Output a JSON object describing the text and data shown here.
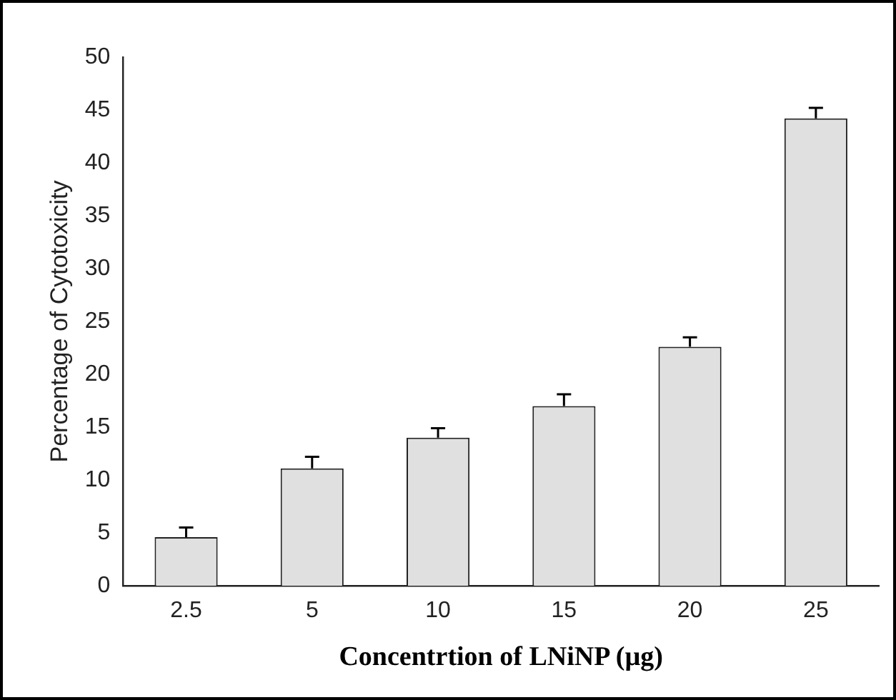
{
  "chart_data": {
    "type": "bar",
    "xlabel": "Concentrtion of LNiNP (µg)",
    "ylabel": "Percentage of Cytotoxicity",
    "categories": [
      "2.5",
      "5",
      "10",
      "15",
      "20",
      "25"
    ],
    "values": [
      4.6,
      11.1,
      14.0,
      17.0,
      22.6,
      44.2
    ],
    "errors": [
      [
        4.6,
        5.5
      ],
      [
        11.1,
        12.2
      ],
      [
        14.0,
        14.9
      ],
      [
        17.0,
        18.1
      ],
      [
        22.6,
        23.5
      ],
      [
        44.2,
        45.2
      ]
    ],
    "color": "#e0e0e0",
    "ylim": [
      0,
      50
    ],
    "yticks": [
      0,
      5,
      10,
      15,
      20,
      25,
      30,
      35,
      40,
      45,
      50
    ],
    "grid": false,
    "legend": false
  }
}
